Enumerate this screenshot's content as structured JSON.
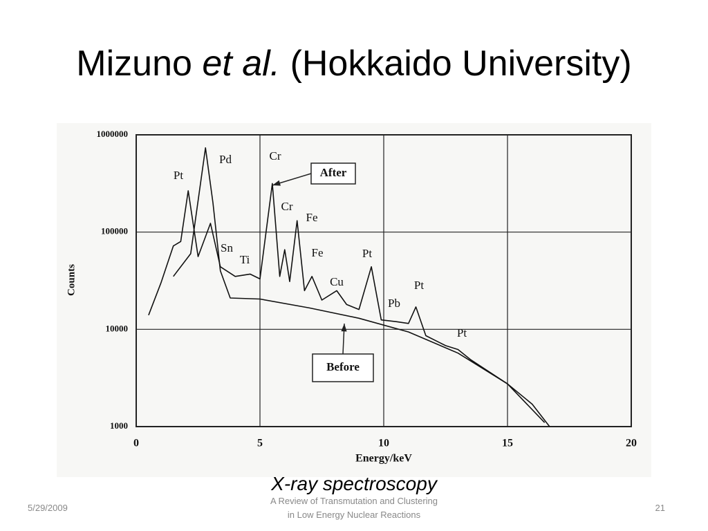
{
  "slide": {
    "title": [
      "Mizuno",
      "et al.",
      "(Hokkaido University)"
    ],
    "caption": "X-ray spectroscopy",
    "footer": {
      "date": "5/29/2009",
      "text": [
        "A Review of Transmutation and Clustering",
        "in Low Energy Nuclear Reactions"
      ],
      "page": "21"
    }
  },
  "chart_data": {
    "type": "line",
    "x_label": "Energy/keV",
    "y_label": "Counts",
    "xlim": [
      0,
      20
    ],
    "xticks": [
      0,
      5,
      10,
      15,
      20
    ],
    "ylim": [
      1000,
      1000000
    ],
    "yticks": [
      1000,
      10000,
      100000,
      1000000
    ],
    "log_y": true,
    "grid": true,
    "series": [
      {
        "name": "After",
        "color": "#111111",
        "x": [
          0.5,
          1.0,
          1.5,
          1.8,
          2.1,
          2.5,
          3.0,
          3.4,
          4.0,
          4.6,
          5.0,
          5.5,
          5.8,
          6.0,
          6.2,
          6.5,
          6.8,
          7.1,
          7.5,
          8.1,
          8.5,
          9.0,
          9.5,
          9.9,
          10.5,
          11.0,
          11.3,
          11.7,
          12.5,
          13.0,
          13.5,
          15.0,
          16.0,
          16.7
        ],
        "values": [
          14000,
          30000,
          72000,
          80000,
          266000,
          56000,
          123000,
          44000,
          35000,
          37000,
          33000,
          316000,
          35000,
          66000,
          31000,
          131000,
          25000,
          35000,
          20000,
          25000,
          18000,
          16000,
          44000,
          12500,
          12000,
          11500,
          17000,
          8600,
          6800,
          6200,
          4900,
          2750,
          1700,
          1000
        ]
      },
      {
        "name": "Before",
        "color": "#111111",
        "x": [
          1.5,
          2.2,
          2.8,
          3.1,
          3.4,
          3.8,
          5.0,
          7.0,
          9.0,
          11.0,
          13.0,
          15.0,
          16.5
        ],
        "values": [
          35000,
          60000,
          735000,
          200000,
          40000,
          21000,
          20500,
          16600,
          13000,
          9400,
          5700,
          2750,
          1100
        ]
      }
    ],
    "annotations": [
      "Pt",
      "Pd",
      "Cr",
      "Cr",
      "Fe",
      "Sn",
      "Ti",
      "Fe",
      "Pt",
      "Cu",
      "Pb",
      "Pt",
      "Pt"
    ]
  }
}
